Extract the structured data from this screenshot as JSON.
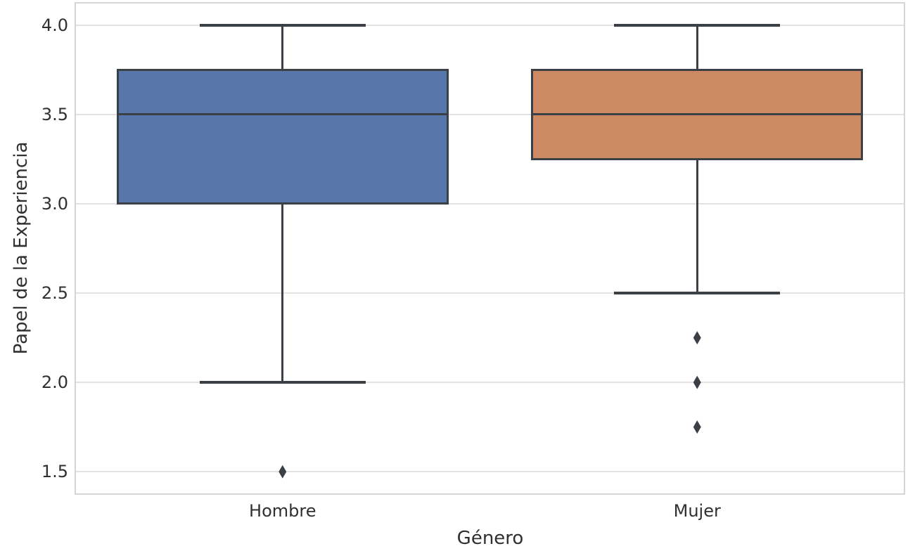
{
  "chart_data": {
    "type": "boxplot",
    "title": "",
    "xlabel": "Género",
    "ylabel": "Papel de la Experiencia",
    "categories": [
      "Hombre",
      "Mujer"
    ],
    "yticks": [
      1.5,
      2.0,
      2.5,
      3.0,
      3.5,
      4.0
    ],
    "ylim": [
      1.375,
      4.125
    ],
    "grid": "horizontal",
    "legend": "none",
    "boxes": [
      {
        "category": "Hombre",
        "fill_color": "#5777ab",
        "whisker_low": 2.0,
        "q1": 3.0,
        "median": 3.5,
        "q3": 3.75,
        "whisker_high": 4.0,
        "outliers": [
          1.5
        ]
      },
      {
        "category": "Mujer",
        "fill_color": "#cc8a62",
        "whisker_low": 2.5,
        "q1": 3.25,
        "median": 3.5,
        "q3": 3.75,
        "whisker_high": 4.0,
        "outliers": [
          2.25,
          2.0,
          1.75
        ]
      }
    ],
    "colors": {
      "line_color": "#3b3f46",
      "grid_color": "#e2e2e2",
      "spine_color": "#d5d5d5",
      "text_color": "#303030",
      "background": "#ffffff"
    }
  }
}
